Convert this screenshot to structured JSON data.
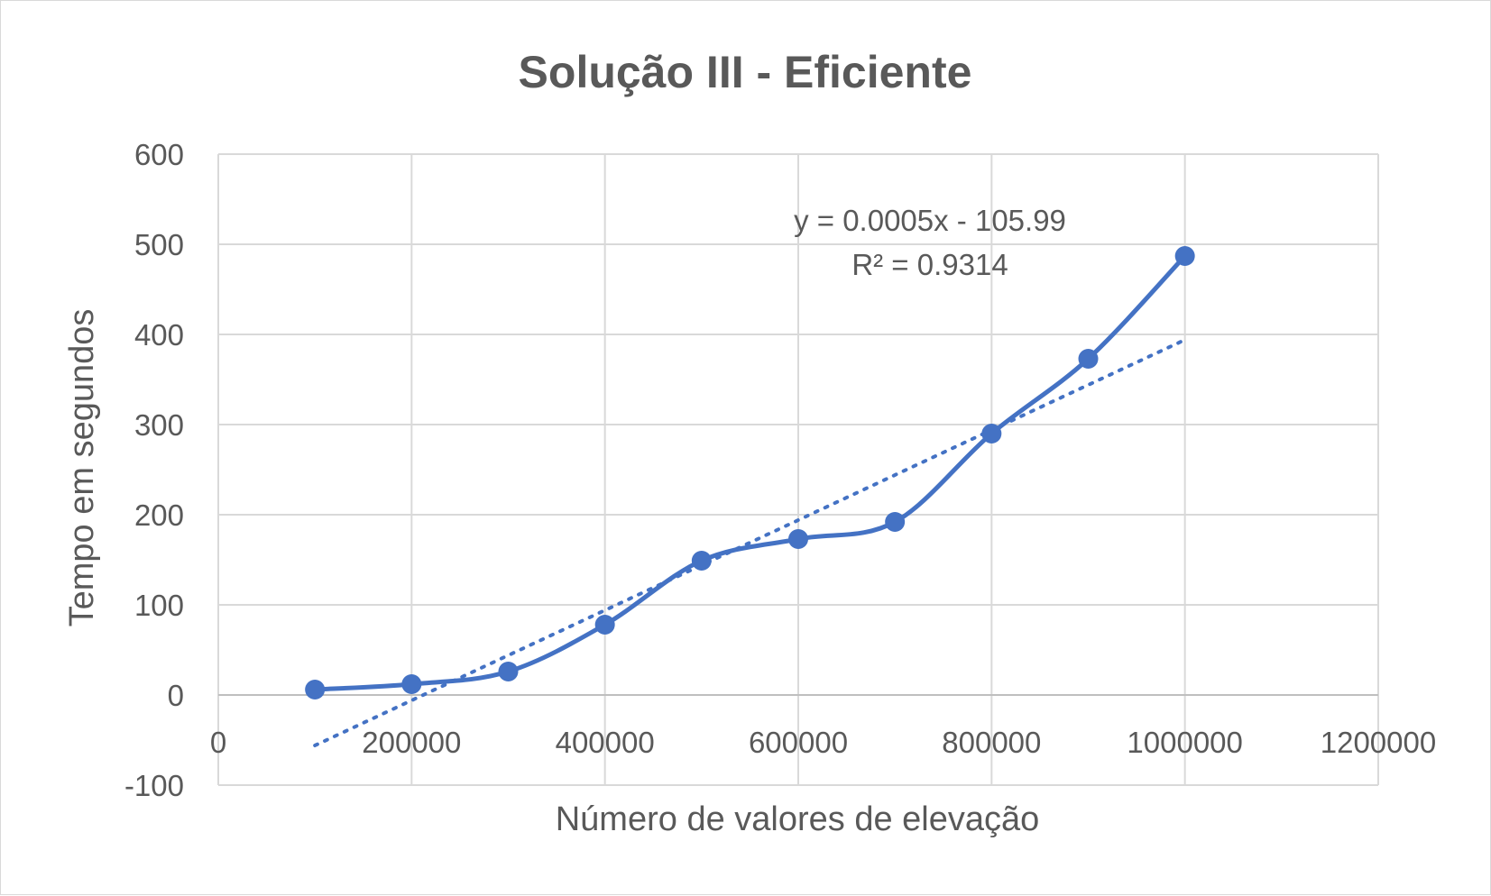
{
  "chart_data": {
    "type": "line",
    "title": "Solução III - Eficiente",
    "xlabel": "Número de valores de elevação",
    "ylabel": "Tempo em segundos",
    "xlim": [
      0,
      1200000
    ],
    "ylim": [
      -100,
      600
    ],
    "x_ticks": [
      0,
      200000,
      400000,
      600000,
      800000,
      1000000,
      1200000
    ],
    "y_ticks": [
      -100,
      0,
      100,
      200,
      300,
      400,
      500,
      600
    ],
    "x_tick_labels": [
      "0",
      "200000",
      "400000",
      "600000",
      "800000",
      "1000000",
      "1200000"
    ],
    "y_tick_labels": [
      "-100",
      "0",
      "100",
      "200",
      "300",
      "400",
      "500",
      "600"
    ],
    "grid": true,
    "smooth_line": true,
    "series": [
      {
        "x": [
          100000,
          200000,
          300000,
          400000,
          500000,
          600000,
          700000,
          800000,
          900000,
          1000000
        ],
        "values": [
          6,
          12,
          26,
          78,
          149,
          173,
          192,
          290,
          373,
          487
        ],
        "color": "#4472c4"
      }
    ],
    "trendline": {
      "type": "linear",
      "slope": 0.0005,
      "intercept": -105.99,
      "x_range": [
        100000,
        1000000
      ],
      "style": "dotted",
      "color": "#4472c4",
      "equation_label": "y = 0.0005x - 105.99",
      "r2_label": "R² = 0.9314"
    }
  }
}
